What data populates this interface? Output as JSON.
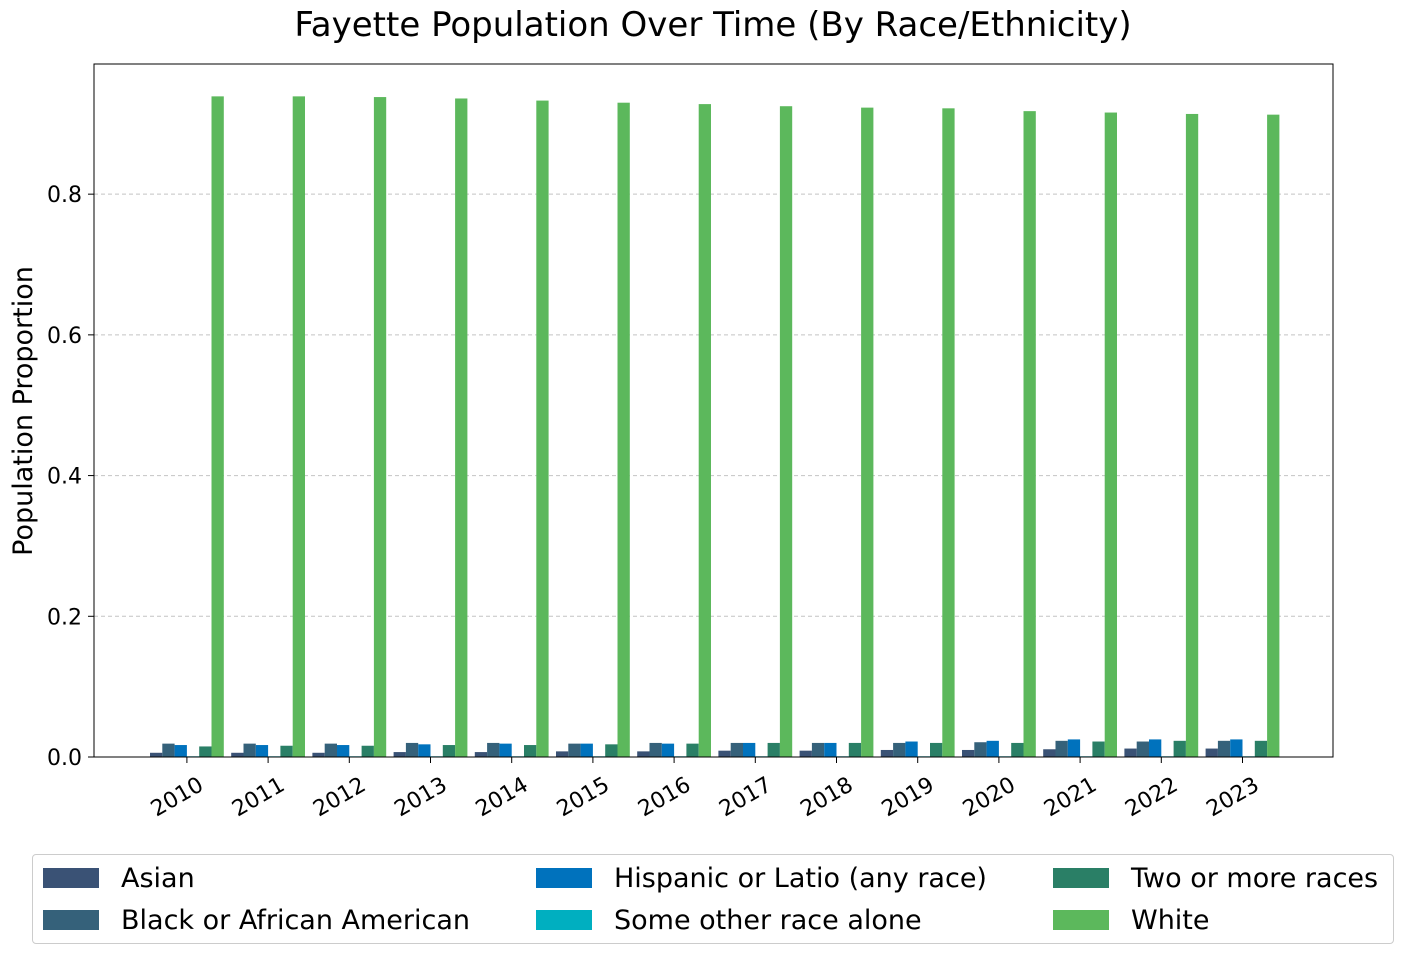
{
  "chart_data": {
    "type": "bar",
    "title": "Fayette Population Over Time (By Race/Ethnicity)",
    "xlabel": "",
    "ylabel": "Population Proportion",
    "ylim": [
      0,
      0.985
    ],
    "yticks": [
      "0.0",
      "0.2",
      "0.4",
      "0.6",
      "0.8"
    ],
    "grid": "horizontal-dashed",
    "legend_position": "bottom",
    "categories": [
      "2010",
      "2011",
      "2012",
      "2013",
      "2014",
      "2015",
      "2016",
      "2017",
      "2018",
      "2019",
      "2020",
      "2021",
      "2022",
      "2023"
    ],
    "series": [
      {
        "name": "Asian",
        "color": "#3a5275",
        "values": [
          0.006,
          0.006,
          0.006,
          0.007,
          0.007,
          0.008,
          0.008,
          0.009,
          0.009,
          0.01,
          0.01,
          0.011,
          0.012,
          0.012
        ]
      },
      {
        "name": "Black or African American",
        "color": "#35617a",
        "values": [
          0.019,
          0.019,
          0.019,
          0.02,
          0.02,
          0.019,
          0.02,
          0.02,
          0.02,
          0.02,
          0.021,
          0.023,
          0.022,
          0.023
        ]
      },
      {
        "name": "Hispanic or Latio (any race)",
        "color": "#0072bd",
        "values": [
          0.017,
          0.017,
          0.017,
          0.018,
          0.019,
          0.019,
          0.019,
          0.02,
          0.02,
          0.022,
          0.023,
          0.025,
          0.025,
          0.025
        ]
      },
      {
        "name": "Some other race alone",
        "color": "#00afc0",
        "values": [
          0.001,
          0.001,
          0.001,
          0.001,
          0.001,
          0.001,
          0.001,
          0.001,
          0.001,
          0.001,
          0.001,
          0.001,
          0.001,
          0.001
        ]
      },
      {
        "name": "Two or more races",
        "color": "#2a7f66",
        "values": [
          0.015,
          0.016,
          0.016,
          0.017,
          0.017,
          0.018,
          0.019,
          0.02,
          0.02,
          0.02,
          0.02,
          0.022,
          0.023,
          0.023
        ]
      },
      {
        "name": "White",
        "color": "#5cb85c",
        "values": [
          0.939,
          0.939,
          0.938,
          0.936,
          0.933,
          0.93,
          0.928,
          0.925,
          0.923,
          0.922,
          0.918,
          0.916,
          0.914,
          0.913
        ]
      }
    ]
  }
}
